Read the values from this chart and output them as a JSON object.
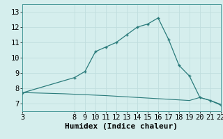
{
  "xlabel": "Humidex (Indice chaleur)",
  "line1_x": [
    3,
    8,
    9,
    10,
    11,
    12,
    13,
    14,
    15,
    16,
    17,
    18,
    19,
    20,
    21,
    22
  ],
  "line1_y": [
    7.7,
    8.7,
    9.1,
    10.4,
    10.7,
    11.0,
    11.5,
    12.0,
    12.2,
    12.6,
    11.2,
    9.5,
    8.8,
    7.4,
    7.2,
    6.9
  ],
  "line2_x": [
    3,
    4,
    5,
    6,
    7,
    8,
    9,
    10,
    11,
    12,
    13,
    14,
    15,
    16,
    17,
    18,
    19,
    20,
    21,
    22
  ],
  "line2_y": [
    7.72,
    7.7,
    7.68,
    7.66,
    7.64,
    7.61,
    7.58,
    7.55,
    7.52,
    7.48,
    7.44,
    7.4,
    7.36,
    7.32,
    7.28,
    7.24,
    7.2,
    7.4,
    7.2,
    6.95
  ],
  "line_color": "#2a7b7b",
  "bg_color": "#d5eeed",
  "grid_major_color": "#c0dede",
  "grid_minor_color": "#ddeaea",
  "xlim": [
    3,
    22
  ],
  "ylim": [
    6.5,
    13.5
  ],
  "xticks": [
    3,
    8,
    9,
    10,
    11,
    12,
    13,
    14,
    15,
    16,
    17,
    18,
    19,
    20,
    21,
    22
  ],
  "yticks": [
    7,
    8,
    9,
    10,
    11,
    12,
    13
  ],
  "tick_fontsize": 7.5,
  "xlabel_fontsize": 8,
  "marker": "+"
}
